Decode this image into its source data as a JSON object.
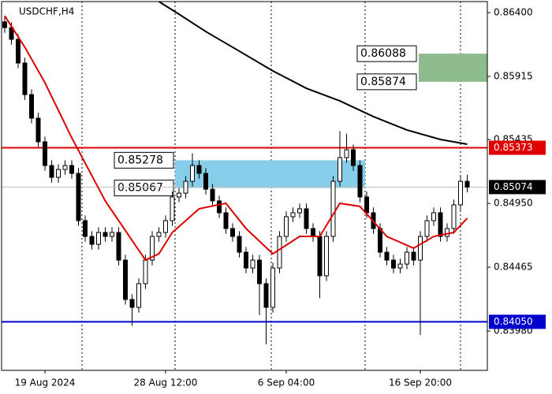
{
  "chart_data": {
    "type": "candlestick",
    "title": "USDCHF,H4",
    "categories": [
      null,
      null,
      null,
      null,
      null,
      null,
      "19 Aug 2024",
      null,
      null,
      null,
      null,
      null,
      null,
      null,
      null,
      null,
      null,
      null,
      null,
      null,
      null,
      null,
      null,
      null,
      "28 Aug 12:00",
      null,
      null,
      null,
      null,
      null,
      null,
      null,
      null,
      null,
      null,
      null,
      null,
      null,
      null,
      null,
      null,
      null,
      "6 Sep 04:00",
      null,
      null,
      null,
      null,
      null,
      null,
      null,
      null,
      null,
      null,
      null,
      null,
      null,
      null,
      null,
      null,
      null,
      null,
      null,
      "16 Sep 20:00",
      null,
      null,
      null,
      null,
      null,
      null,
      null
    ],
    "open": [
      0.8633,
      0.86286,
      0.86197,
      0.86017,
      0.85777,
      0.85598,
      0.85418,
      0.85238,
      0.85148,
      0.85208,
      0.85238,
      0.85178,
      0.84819,
      0.84699,
      0.84639,
      0.84729,
      0.84699,
      0.84729,
      0.84519,
      0.8422,
      0.8416,
      0.8434,
      0.84519,
      0.84699,
      0.84729,
      0.84819,
      0.84999,
      0.85028,
      0.85118,
      0.85238,
      0.85178,
      0.85058,
      0.84969,
      0.84879,
      0.84759,
      0.84699,
      0.84579,
      0.84459,
      0.84519,
      0.8434,
      0.8416,
      0.84459,
      0.84699,
      0.84849,
      0.84879,
      0.84909,
      0.84759,
      0.84699,
      0.844,
      0.84699,
      0.85118,
      0.85298,
      0.85358,
      0.85238,
      0.84999,
      0.84879,
      0.84759,
      0.84579,
      0.84519,
      0.84459,
      0.84489,
      0.84579,
      0.84519,
      0.84699,
      0.84819,
      0.84879,
      0.84699,
      0.84759,
      0.84939,
      0.85118
    ],
    "high": [
      0.8637,
      0.86326,
      0.86237,
      0.86057,
      0.85817,
      0.85638,
      0.85458,
      0.85278,
      0.85248,
      0.85278,
      0.85278,
      0.85218,
      0.84859,
      0.84739,
      0.84769,
      0.84769,
      0.84769,
      0.84769,
      0.84559,
      0.8426,
      0.8438,
      0.84559,
      0.84739,
      0.84769,
      0.84859,
      0.85039,
      0.85068,
      0.85158,
      0.8533,
      0.85278,
      0.85218,
      0.85098,
      0.85009,
      0.84919,
      0.84799,
      0.84739,
      0.84619,
      0.84559,
      0.84559,
      0.8438,
      0.84499,
      0.84739,
      0.84889,
      0.84919,
      0.84949,
      0.84949,
      0.84799,
      0.84739,
      0.84739,
      0.85158,
      0.855,
      0.8548,
      0.85398,
      0.85278,
      0.85039,
      0.84919,
      0.84799,
      0.84619,
      0.84559,
      0.84529,
      0.84619,
      0.84619,
      0.84739,
      0.84859,
      0.84919,
      0.84919,
      0.84799,
      0.84979,
      0.85158,
      0.85168
    ],
    "low": [
      0.86246,
      0.86157,
      0.85977,
      0.85737,
      0.85558,
      0.85378,
      0.85198,
      0.85108,
      0.85108,
      0.85168,
      0.85138,
      0.84779,
      0.84659,
      0.84599,
      0.84599,
      0.84659,
      0.84659,
      0.84479,
      0.8418,
      0.8402,
      0.8412,
      0.843,
      0.84479,
      0.84659,
      0.84689,
      0.84779,
      0.84959,
      0.84988,
      0.85078,
      0.85138,
      0.85018,
      0.84929,
      0.84839,
      0.84719,
      0.84659,
      0.84539,
      0.84419,
      0.84419,
      0.841,
      0.8388,
      0.8412,
      0.84419,
      0.84659,
      0.84809,
      0.84839,
      0.84719,
      0.84659,
      0.8423,
      0.8436,
      0.84659,
      0.85078,
      0.85258,
      0.85198,
      0.84959,
      0.84839,
      0.84719,
      0.84539,
      0.84479,
      0.84419,
      0.84419,
      0.84449,
      0.84479,
      0.8395,
      0.84659,
      0.84779,
      0.84659,
      0.84659,
      0.84719,
      0.84899,
      0.85034
    ],
    "close": [
      0.86286,
      0.86197,
      0.86017,
      0.85777,
      0.85598,
      0.85418,
      0.85238,
      0.85148,
      0.85208,
      0.85238,
      0.85178,
      0.84819,
      0.84699,
      0.84639,
      0.84729,
      0.84699,
      0.84729,
      0.84519,
      0.8422,
      0.8416,
      0.8434,
      0.84519,
      0.84699,
      0.84729,
      0.84819,
      0.84999,
      0.85028,
      0.85118,
      0.85238,
      0.85178,
      0.85058,
      0.84969,
      0.84879,
      0.84759,
      0.84699,
      0.84579,
      0.84459,
      0.84519,
      0.8434,
      0.8416,
      0.84459,
      0.84699,
      0.84849,
      0.84879,
      0.84909,
      0.84759,
      0.84699,
      0.844,
      0.84699,
      0.85118,
      0.85298,
      0.85358,
      0.85238,
      0.84999,
      0.84879,
      0.84759,
      0.84579,
      0.84519,
      0.84459,
      0.84489,
      0.84579,
      0.84519,
      0.84699,
      0.84819,
      0.84879,
      0.84699,
      0.84759,
      0.84939,
      0.85118,
      0.85074
    ],
    "candle_color": "#000000",
    "ylim": [
      0.83681,
      0.86496
    ],
    "yticks": [
      {
        "value": 0.864,
        "label": "0.86400"
      },
      0.85915,
      0.85435,
      {
        "value": 0.8495,
        "label": "0.84950"
      },
      0.84465,
      {
        "value": 0.8398,
        "label": "0.83980"
      }
    ],
    "moving_averages": [
      {
        "color": "#dd0000",
        "x": [
          0,
          3,
          6,
          10,
          15,
          19,
          21,
          23,
          25,
          29,
          33,
          36,
          40,
          44,
          47,
          50,
          53,
          57,
          61,
          64,
          67,
          69
        ],
        "values": [
          0.86376,
          0.86137,
          0.85867,
          0.85448,
          0.84969,
          0.84669,
          0.84519,
          0.84567,
          0.84729,
          0.84909,
          0.84951,
          0.84759,
          0.84567,
          0.84699,
          0.84699,
          0.84951,
          0.84927,
          0.84699,
          0.84609,
          0.84699,
          0.84729,
          0.84837
        ]
      },
      {
        "color": "#000000",
        "x": [
          23,
          26,
          30,
          35,
          40,
          45,
          50,
          55,
          60,
          65,
          69
        ],
        "values": [
          0.86484,
          0.86388,
          0.86256,
          0.86107,
          0.85957,
          0.85825,
          0.85729,
          0.8561,
          0.85508,
          0.85436,
          0.854
        ]
      }
    ],
    "levels": [
      {
        "value": 0.85373,
        "color": "#e00000"
      },
      {
        "value": 0.8405,
        "label": "0.84050",
        "color": "#0000cc"
      },
      {
        "value": 0.85074,
        "color": "#000000"
      }
    ],
    "zones": [
      {
        "top": 0.85278,
        "bottom": 0.85067,
        "color": "#87ceeb"
      },
      {
        "top": 0.86088,
        "bottom": 0.85874,
        "color": "#8fbc8f"
      }
    ]
  }
}
